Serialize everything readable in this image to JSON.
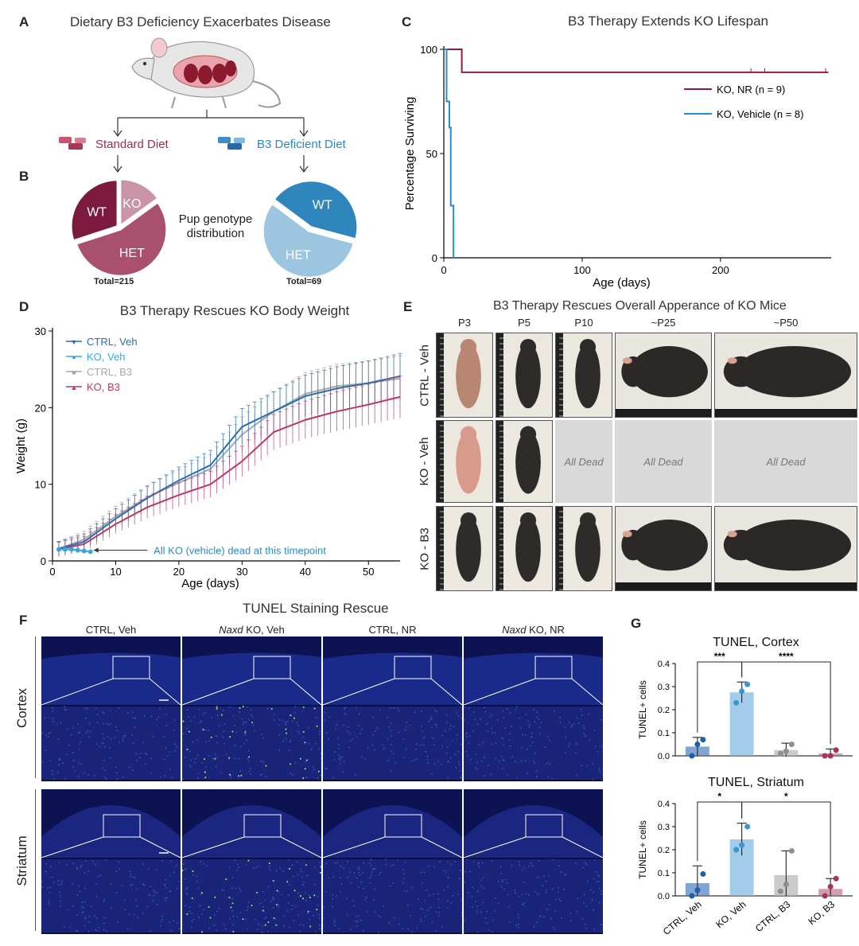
{
  "panels": {
    "A": {
      "label": "A",
      "title": "Dietary B3 Deficiency Exacerbates Disease",
      "standard_diet": "Standard Diet",
      "b3_deficient_diet": "B3 Deficient Diet"
    },
    "B": {
      "label": "B",
      "middle_text_1": "Pup genotype",
      "middle_text_2": "distribution",
      "total_left": "Total=215",
      "total_right": "Total=69",
      "colors": {
        "wt_left": "#7b1a3e",
        "ko_left": "#c994a8",
        "het_left": "#a8506e",
        "wt_right": "#2e86bd",
        "het_right": "#9cc6df"
      }
    },
    "C": {
      "label": "C",
      "title": "B3 Therapy Extends KO Lifespan"
    },
    "D": {
      "label": "D",
      "title": "B3 Therapy Rescues KO Body Weight",
      "annotation": "All KO (vehicle) dead at this timepoint"
    },
    "E": {
      "label": "E",
      "title": "B3 Therapy Rescues Overall Apperance of KO Mice",
      "columns": [
        "P3",
        "P5",
        "P10",
        "~P25",
        "~P50"
      ],
      "rows": [
        "CTRL - Veh",
        "KO - Veh",
        "KO - B3"
      ],
      "dead_text": "All Dead"
    },
    "F": {
      "label": "F",
      "title": "TUNEL Staining Rescue",
      "columns": [
        {
          "prefix": "",
          "italic": "",
          "suffix": "CTRL, Veh"
        },
        {
          "prefix": "",
          "italic": "Naxd",
          "suffix": " KO, Veh"
        },
        {
          "prefix": "",
          "italic": "",
          "suffix": "CTRL, NR"
        },
        {
          "prefix": "",
          "italic": "Naxd",
          "suffix": " KO, NR"
        }
      ],
      "rows": [
        "Cortex",
        "Striatum"
      ]
    },
    "G": {
      "label": "G"
    }
  },
  "chart_data": [
    {
      "type": "pie",
      "panel": "B-left",
      "slices": [
        {
          "label": "WT",
          "value": 30
        },
        {
          "label": "KO",
          "value": 15
        },
        {
          "label": "HET",
          "value": 55
        }
      ],
      "total": "Total=215"
    },
    {
      "type": "pie",
      "panel": "B-right",
      "slices": [
        {
          "label": "WT",
          "value": 44
        },
        {
          "label": "HET",
          "value": 56
        }
      ],
      "total": "Total=69"
    },
    {
      "type": "line",
      "panel": "C",
      "title": "B3 Therapy Extends KO Lifespan",
      "xlabel": "Age (days)",
      "ylabel": "Percentage Surviving",
      "xlim": [
        0,
        280
      ],
      "ylim": [
        0,
        100
      ],
      "xticks": [
        0,
        100,
        200
      ],
      "yticks": [
        0,
        50,
        100
      ],
      "legend_position": "right",
      "series": [
        {
          "name": "KO, NR (n = 9)",
          "color": "#8c1d4a",
          "x": [
            0,
            13,
            13,
            278
          ],
          "y": [
            100,
            100,
            89,
            89
          ]
        },
        {
          "name": "KO, Vehicle (n = 8)",
          "color": "#2a8cc4",
          "x": [
            0,
            2,
            2,
            4,
            4,
            5,
            5,
            7,
            7
          ],
          "y": [
            100,
            100,
            75,
            75,
            62.5,
            62.5,
            25,
            25,
            0
          ]
        }
      ]
    },
    {
      "type": "line",
      "panel": "D",
      "title": "B3 Therapy Rescues KO Body Weight",
      "xlabel": "Age (days)",
      "ylabel": "Weight (g)",
      "xlim": [
        0,
        55
      ],
      "ylim": [
        0,
        30
      ],
      "xticks": [
        0,
        10,
        20,
        30,
        40,
        50
      ],
      "yticks": [
        0,
        10,
        20,
        30
      ],
      "legend_position": "top-left",
      "series": [
        {
          "name": "CTRL, Veh",
          "color": "#2b6cb0",
          "x": [
            1,
            5,
            10,
            15,
            20,
            25,
            30,
            35,
            40,
            45,
            50,
            55
          ],
          "y": [
            1.6,
            2.5,
            5.5,
            8.2,
            10.5,
            12.5,
            17.5,
            19.5,
            21.5,
            22.5,
            23.2,
            24.1
          ]
        },
        {
          "name": "KO, Veh",
          "color": "#3aa6dc",
          "x": [
            1,
            2,
            3,
            4,
            5,
            6
          ],
          "y": [
            1.5,
            1.5,
            1.5,
            1.4,
            1.3,
            1.2
          ]
        },
        {
          "name": "CTRL, B3",
          "color": "#a8a8a8",
          "x": [
            1,
            5,
            10,
            15,
            20,
            25,
            30,
            35,
            40,
            45,
            50,
            55
          ],
          "y": [
            1.6,
            2.8,
            5.8,
            8.3,
            10.2,
            12.0,
            16.5,
            19.5,
            21.8,
            22.8,
            23.2,
            23.8
          ]
        },
        {
          "name": "KO, B3",
          "color": "#b53a6a",
          "x": [
            1,
            5,
            10,
            15,
            20,
            25,
            30,
            35,
            40,
            45,
            50,
            55
          ],
          "y": [
            1.5,
            2.2,
            4.8,
            7.0,
            8.6,
            10.0,
            13.0,
            16.8,
            18.4,
            19.5,
            20.4,
            21.4
          ]
        }
      ]
    },
    {
      "type": "bar",
      "panel": "G-top",
      "title": "TUNEL, Cortex",
      "ylabel": "TUNEL+ cells",
      "categories": [
        "CTRL, Veh",
        "KO, Veh",
        "CTRL, B3",
        "KO, B3"
      ],
      "values": [
        0.04,
        0.275,
        0.025,
        0.01
      ],
      "errors": [
        0.04,
        0.045,
        0.03,
        0.02
      ],
      "points": [
        [
          0.0,
          0.05,
          0.07
        ],
        [
          0.23,
          0.28,
          0.31
        ],
        [
          0.01,
          0.02,
          0.05
        ],
        [
          0.0,
          0.0,
          0.025
        ]
      ],
      "ylim": [
        0,
        0.4
      ],
      "yticks": [
        0.0,
        0.1,
        0.2,
        0.3,
        0.4
      ],
      "bar_colors": [
        "#4a7fc0",
        "#7ab7e0",
        "#b5b5b5",
        "#c47090"
      ],
      "point_colors": [
        "#1f5fa8",
        "#3a96d0",
        "#8e8e8e",
        "#a3355f"
      ],
      "significance": [
        {
          "from": 0,
          "to": 1,
          "label": "***"
        },
        {
          "from": 1,
          "to": 3,
          "label": "****"
        }
      ]
    },
    {
      "type": "bar",
      "panel": "G-bottom",
      "title": "TUNEL, Striatum",
      "ylabel": "TUNEL+ cells",
      "categories": [
        "CTRL, Veh",
        "KO, Veh",
        "CTRL, B3",
        "KO, B3"
      ],
      "values": [
        0.055,
        0.245,
        0.09,
        0.03
      ],
      "errors": [
        0.075,
        0.07,
        0.105,
        0.045
      ],
      "points": [
        [
          0.0,
          0.025,
          0.095
        ],
        [
          0.2,
          0.22,
          0.3
        ],
        [
          0.02,
          0.05,
          0.195
        ],
        [
          0.0,
          0.04,
          0.075
        ]
      ],
      "ylim": [
        0,
        0.4
      ],
      "yticks": [
        0.0,
        0.1,
        0.2,
        0.3,
        0.4
      ],
      "bar_colors": [
        "#4a7fc0",
        "#7ab7e0",
        "#b5b5b5",
        "#c47090"
      ],
      "point_colors": [
        "#1f5fa8",
        "#3a96d0",
        "#8e8e8e",
        "#a3355f"
      ],
      "significance": [
        {
          "from": 0,
          "to": 1,
          "label": "*"
        },
        {
          "from": 1,
          "to": 3,
          "label": "*"
        }
      ]
    }
  ]
}
